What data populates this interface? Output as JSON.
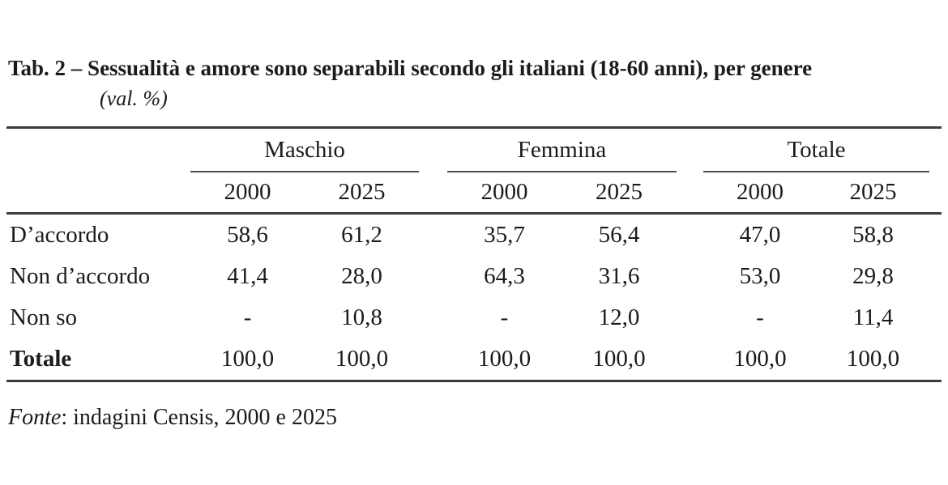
{
  "title": {
    "main": "Tab. 2 – Sessualità e amore sono separabili secondo gli italiani (18-60 anni), per genere",
    "subtitle": "(val. %)"
  },
  "table": {
    "groups": [
      {
        "label": "Maschio"
      },
      {
        "label": "Femmina"
      },
      {
        "label": "Totale"
      }
    ],
    "year_columns": [
      "2000",
      "2025",
      "2000",
      "2025",
      "2000",
      "2025"
    ],
    "rows": [
      {
        "label": "D’accordo",
        "values": [
          "58,6",
          "61,2",
          "35,7",
          "56,4",
          "47,0",
          "58,8"
        ]
      },
      {
        "label": "Non d’accordo",
        "values": [
          "41,4",
          "28,0",
          "64,3",
          "31,6",
          "53,0",
          "29,8"
        ]
      },
      {
        "label": "Non so",
        "values": [
          "-",
          "10,8",
          "-",
          "12,0",
          "-",
          "11,4"
        ]
      },
      {
        "label": "Totale",
        "values": [
          "100,0",
          "100,0",
          "100,0",
          "100,0",
          "100,0",
          "100,0"
        ]
      }
    ]
  },
  "source": {
    "label": "Fonte",
    "text": ": indagini Censis, 2000 e 2025"
  },
  "colors": {
    "text": "#1b1b1b",
    "rule": "#3c3c3c",
    "group_rule": "#4d4d4d",
    "background": "#ffffff"
  }
}
